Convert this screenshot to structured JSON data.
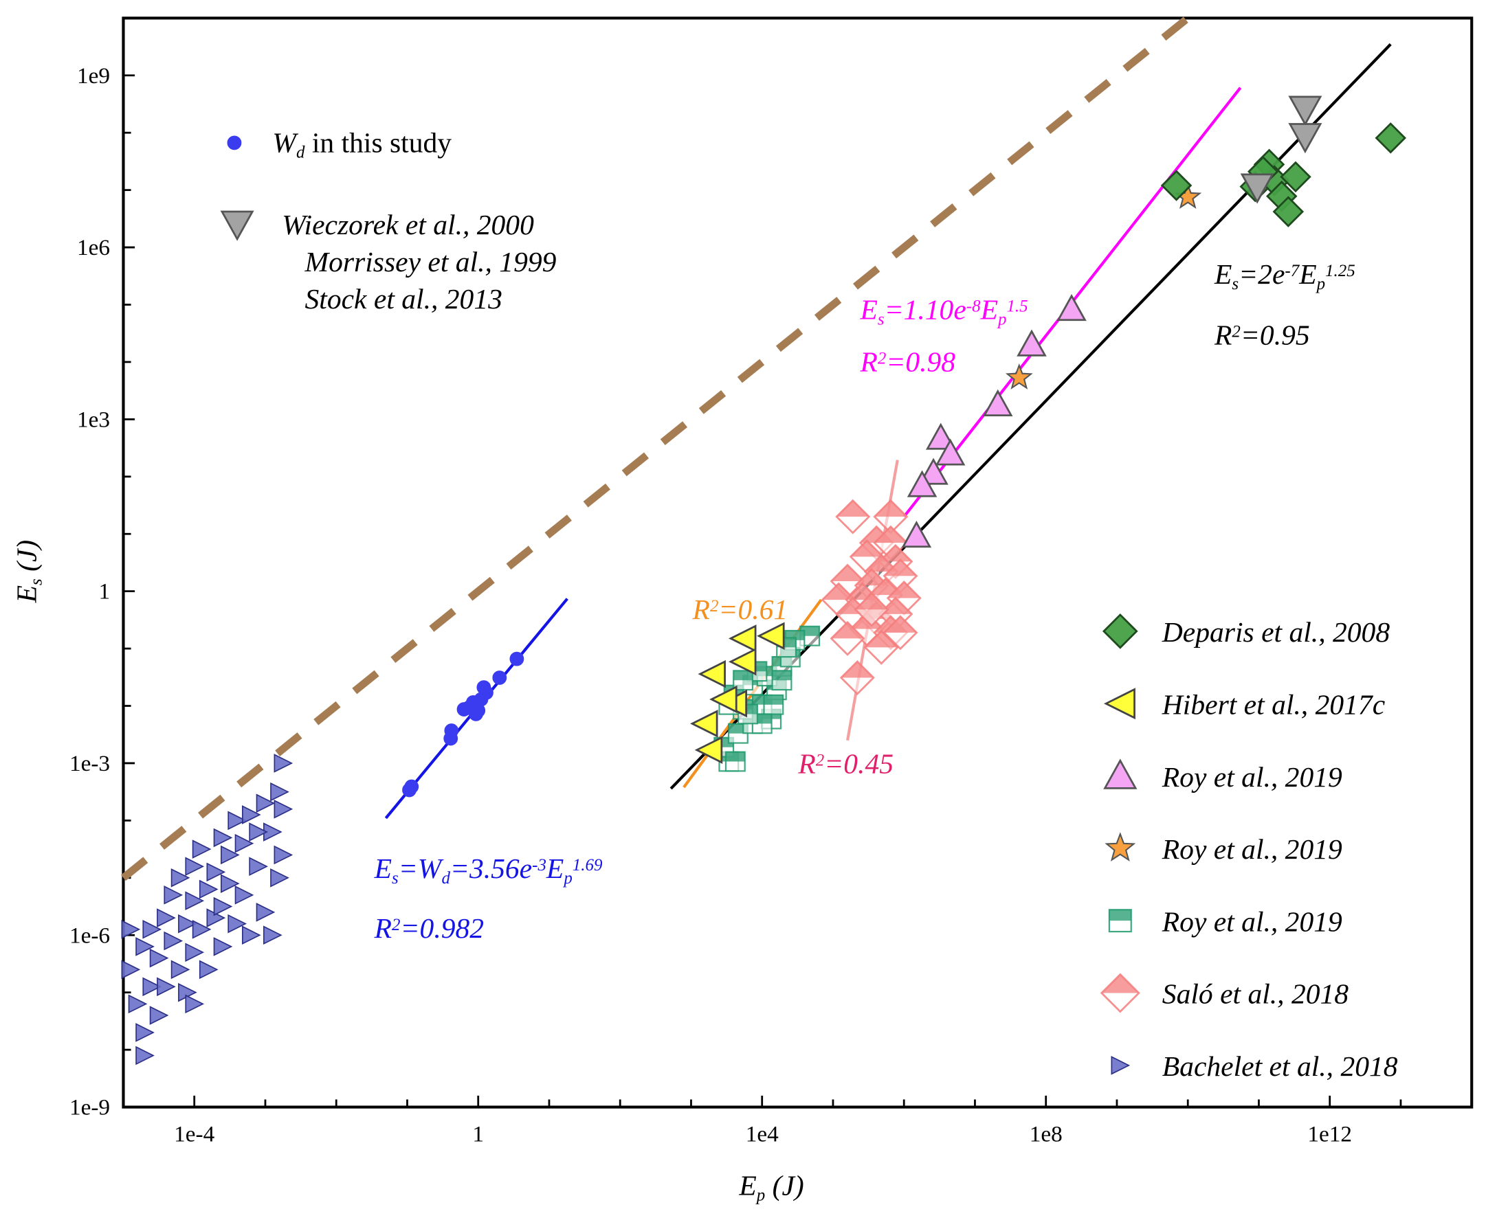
{
  "chart_data": {
    "type": "scatter",
    "xlabel": {
      "main": "E",
      "sub": "p",
      "unit": " (J)"
    },
    "ylabel": {
      "main": "E",
      "sub": "s",
      "unit": " (J)"
    },
    "xscale": "log",
    "yscale": "log",
    "xlim": [
      1e-05,
      100000000000000.0
    ],
    "ylim": [
      1e-09,
      10000000000.0
    ],
    "grid": false,
    "x_ticks": [
      {
        "v": 0.0001,
        "label": "1e-4"
      },
      {
        "v": 1,
        "label": "1"
      },
      {
        "v": 10000.0,
        "label": "1e4"
      },
      {
        "v": 100000000.0,
        "label": "1e8"
      },
      {
        "v": 1000000000000.0,
        "label": "1e12"
      }
    ],
    "y_ticks": [
      {
        "v": 1000000000.0,
        "label": "1e9"
      },
      {
        "v": 1000000.0,
        "label": "1e6"
      },
      {
        "v": 1000.0,
        "label": "1e3"
      },
      {
        "v": 1,
        "label": "1"
      },
      {
        "v": 0.001,
        "label": "1e-3"
      },
      {
        "v": 1e-06,
        "label": "1e-6"
      },
      {
        "v": 1e-09,
        "label": "1e-9"
      }
    ],
    "series": [
      {
        "name": "Bachelet et al., 2018",
        "marker": "triangle-right",
        "color": "#6b70c9",
        "edge": "#2b2f86",
        "points": [
          [
            1.26e-05,
            2.51e-07
          ],
          [
            1.58e-05,
            6.31e-08
          ],
          [
            2e-05,
            2e-08
          ],
          [
            2e-05,
            7.94e-09
          ],
          [
            2e-05,
            6.31e-07
          ],
          [
            2.51e-05,
            1.26e-07
          ],
          [
            2.51e-05,
            1.26e-06
          ],
          [
            3.16e-05,
            3.98e-07
          ],
          [
            3.16e-05,
            3.98e-08
          ],
          [
            3.98e-05,
            2e-06
          ],
          [
            3.98e-05,
            1.26e-07
          ],
          [
            5.01e-05,
            7.94e-07
          ],
          [
            5.01e-05,
            5.01e-06
          ],
          [
            6.31e-05,
            2.51e-07
          ],
          [
            6.31e-05,
            1e-05
          ],
          [
            7.94e-05,
            1.58e-06
          ],
          [
            7.94e-05,
            1e-07
          ],
          [
            0.0001,
            3.98e-06
          ],
          [
            0.0001,
            5.01e-07
          ],
          [
            0.0001,
            1.58e-05
          ],
          [
            0.000126,
            1.26e-06
          ],
          [
            0.000126,
            3.16e-05
          ],
          [
            0.000158,
            6.31e-06
          ],
          [
            0.000158,
            2.51e-07
          ],
          [
            0.0002,
            1.26e-05
          ],
          [
            0.0002,
            2e-06
          ],
          [
            0.000251,
            5.01e-05
          ],
          [
            0.000251,
            6.31e-07
          ],
          [
            0.000316,
            7.94e-06
          ],
          [
            0.000316,
            2.51e-05
          ],
          [
            0.000398,
            1.58e-06
          ],
          [
            0.000398,
            0.0001
          ],
          [
            0.000501,
            5.01e-06
          ],
          [
            0.000501,
            3.98e-05
          ],
          [
            0.000631,
            0.000126
          ],
          [
            0.000631,
            1e-06
          ],
          [
            0.000794,
            1.58e-05
          ],
          [
            0.001,
            0.0002
          ],
          [
            0.001,
            2.51e-06
          ],
          [
            0.00126,
            6.31e-05
          ],
          [
            0.00126,
            1e-06
          ],
          [
            0.00158,
            0.000316
          ],
          [
            0.00158,
            1e-05
          ],
          [
            0.00178,
            0.001
          ],
          [
            0.00178,
            2.51e-05
          ],
          [
            0.00178,
            0.000158
          ],
          [
            1.26e-05,
            1.26e-06
          ],
          [
            0.0001,
            6.31e-08
          ],
          [
            0.000251,
            3.16e-06
          ],
          [
            0.000794,
            6.31e-05
          ]
        ]
      },
      {
        "name": "W_d in this study",
        "marker": "circle",
        "color": "#3b3bf0",
        "edge": "#3b3bf0",
        "points": [
          [
            0.107,
            0.00034
          ],
          [
            0.115,
            0.00039
          ],
          [
            0.41,
            0.0027
          ],
          [
            0.42,
            0.0037
          ],
          [
            0.63,
            0.0087
          ],
          [
            0.74,
            0.0093
          ],
          [
            0.85,
            0.0115
          ],
          [
            0.93,
            0.0072
          ],
          [
            1.0,
            0.0083
          ],
          [
            1.1,
            0.013
          ],
          [
            1.3,
            0.017
          ],
          [
            1.2,
            0.021
          ],
          [
            2.0,
            0.031
          ],
          [
            3.5,
            0.066
          ]
        ]
      },
      {
        "name": "Roy et al., 2019 (squares)",
        "marker": "square-half",
        "color": "#1f9a6c",
        "edge": "#1f9a6c",
        "points": [
          [
            3400.0,
            0.00107
          ],
          [
            2900.0,
            0.0019
          ],
          [
            4600.0,
            0.0033
          ],
          [
            7400.0,
            0.0049
          ],
          [
            13500.0,
            0.0059
          ],
          [
            10000.0,
            0.0105
          ],
          [
            5400.0,
            0.0087
          ],
          [
            4000.0,
            0.0155
          ],
          [
            7400.0,
            0.023
          ],
          [
            16000.0,
            0.019
          ],
          [
            11700.0,
            0.033
          ],
          [
            19000.0,
            0.049
          ],
          [
            25000.0,
            0.071
          ],
          [
            47000.0,
            0.166
          ],
          [
            29000.0,
            0.14
          ],
          [
            22000.0,
            0.105
          ],
          [
            8500.0,
            0.04
          ],
          [
            5400.0,
            0.028
          ],
          [
            3400.0,
            0.0105
          ],
          [
            14500.0,
            0.0105
          ],
          [
            10000.0,
            0.0049
          ],
          [
            6300.0,
            0.0072
          ],
          [
            4200.0,
            0.00107
          ],
          [
            19000.0,
            0.028
          ]
        ]
      },
      {
        "name": "Hibert et al., 2017c",
        "marker": "triangle-left",
        "color": "#ffff3a",
        "edge": "#444444",
        "points": [
          [
            5400.0,
            0.15
          ],
          [
            13500.0,
            0.166
          ],
          [
            2000.0,
            0.036
          ],
          [
            5400.0,
            0.059
          ],
          [
            1550.0,
            0.0049
          ],
          [
            4000.0,
            0.011
          ],
          [
            1800.0,
            0.0017
          ],
          [
            2900.0,
            0.013
          ]
        ]
      },
      {
        "name": "Saló et al., 2018",
        "marker": "diamond-half",
        "color": "#f47c7c",
        "edge": "#f47c7c",
        "points": [
          [
            190000.0,
            20
          ],
          [
            650000.0,
            20
          ],
          [
            410000.0,
            7
          ],
          [
            650000.0,
            7
          ],
          [
            300000.0,
            4
          ],
          [
            760000.0,
            3.3
          ],
          [
            480000.0,
            2.2
          ],
          [
            160000.0,
            1.5
          ],
          [
            350000.0,
            1.26
          ],
          [
            890000.0,
            1.85
          ],
          [
            120000.0,
            0.71
          ],
          [
            260000.0,
            0.71
          ],
          [
            550000.0,
            0.86
          ],
          [
            1000000.0,
            0.76
          ],
          [
            190000.0,
            0.4
          ],
          [
            410000.0,
            0.33
          ],
          [
            760000.0,
            0.4
          ],
          [
            300000.0,
            0.22
          ],
          [
            650000.0,
            0.19
          ],
          [
            160000.0,
            0.15
          ],
          [
            480000.0,
            0.105
          ],
          [
            220000.0,
            0.031
          ],
          [
            890000.0,
            0.19
          ],
          [
            350000.0,
            0.48
          ]
        ]
      },
      {
        "name": "Roy et al., 2019 (triangles)",
        "marker": "triangle-up",
        "color": "#f4a6f4",
        "edge": "#555555",
        "points": [
          [
            230000000.0,
            83000.0
          ],
          [
            63000000.0,
            20000.0
          ],
          [
            21000000.0,
            1800.0
          ],
          [
            3300000.0,
            470
          ],
          [
            4500000.0,
            250
          ],
          [
            2600000.0,
            115
          ],
          [
            1800000.0,
            70
          ],
          [
            1500000.0,
            9.2
          ]
        ]
      },
      {
        "name": "Roy et al., 2019 (stars)",
        "marker": "star",
        "color": "#f8a040",
        "edge": "#555555",
        "points": [
          [
            10000000000.0,
            7500000.0
          ],
          [
            42000000.0,
            5300.0
          ]
        ]
      },
      {
        "name": "Deparis et al., 2008",
        "marker": "diamond",
        "color": "#44a044",
        "edge": "#1e4a1e",
        "points": [
          [
            7200000000000.0,
            81000000.0
          ],
          [
            6900000000.0,
            12000000.0
          ],
          [
            89000000000.0,
            11500000.0
          ],
          [
            140000000000.0,
            28000000.0
          ],
          [
            166000000000.0,
            14500000.0
          ],
          [
            210000000000.0,
            7800000.0
          ],
          [
            260000000000.0,
            4200000.0
          ],
          [
            330000000000.0,
            17000000.0
          ],
          [
            115000000000.0,
            21000000.0
          ]
        ]
      },
      {
        "name": "Wieczorek et al., 2000",
        "marker": "triangle-down",
        "color": "#a3a3a3",
        "edge": "#555555",
        "points": [
          [
            450000000000.0,
            260000000.0
          ],
          [
            450000000000.0,
            87000000.0
          ],
          [
            95000000000.0,
            11500000.0
          ]
        ]
      }
    ],
    "lines": [
      {
        "id": "equality",
        "color": "#a67c52",
        "dashed": true,
        "points": [
          [
            1e-05,
            1e-05
          ],
          [
            10000000000.0,
            10000000000.0
          ]
        ]
      },
      {
        "id": "this-study-fit",
        "color": "#1414e6",
        "points": [
          [
            0.05,
            0.00011
          ],
          [
            18,
            0.74
          ]
        ]
      },
      {
        "id": "overall-fit",
        "color": "#000000",
        "points": [
          [
            520.0,
            0.00036
          ],
          [
            7200000000000.0,
            3500000000.0
          ]
        ]
      },
      {
        "id": "roy-triangle-fit",
        "color": "#ff00ff",
        "points": [
          [
            1000000.0,
            20
          ],
          [
            55000000000.0,
            610000000.0
          ]
        ]
      },
      {
        "id": "hibert-fit",
        "color": "#f39020",
        "points": [
          [
            790.0,
            0.00038
          ],
          [
            68000.0,
            0.71
          ]
        ]
      },
      {
        "id": "salo-fit",
        "color": "#f4a0a0",
        "points": [
          [
            810000.0,
            195
          ],
          [
            160000.0,
            0.0025
          ]
        ]
      }
    ],
    "annotations": {
      "blue_eq": [
        {
          "t": "E"
        },
        {
          "t": "s",
          "s": "sub"
        },
        {
          "t": "=W"
        },
        {
          "t": "d",
          "s": "sub"
        },
        {
          "t": "=3.56e"
        },
        {
          "t": "-3",
          "s": "sup"
        },
        {
          "t": "E"
        },
        {
          "t": "p",
          "s": "sub"
        },
        {
          "t": "1.69",
          "s": "sup"
        }
      ],
      "blue_r2": [
        {
          "t": "R"
        },
        {
          "t": "2",
          "s": "sup"
        },
        {
          "t": "=0.982"
        }
      ],
      "magenta_eq": [
        {
          "t": "E"
        },
        {
          "t": "s",
          "s": "sub"
        },
        {
          "t": "=1.10e"
        },
        {
          "t": "-8",
          "s": "sup"
        },
        {
          "t": "E"
        },
        {
          "t": "p",
          "s": "sub"
        },
        {
          "t": "1.5",
          "s": "sup"
        }
      ],
      "magenta_r2": [
        {
          "t": "R"
        },
        {
          "t": "2",
          "s": "sup"
        },
        {
          "t": "=0.98"
        }
      ],
      "black_eq": [
        {
          "t": "E"
        },
        {
          "t": "s",
          "s": "sub"
        },
        {
          "t": "=2e"
        },
        {
          "t": "-7",
          "s": "sup"
        },
        {
          "t": "E"
        },
        {
          "t": "p",
          "s": "sub"
        },
        {
          "t": "1.25",
          "s": "sup"
        }
      ],
      "black_r2": [
        {
          "t": "R"
        },
        {
          "t": "2",
          "s": "sup"
        },
        {
          "t": "=0.95"
        }
      ],
      "orange_r2": [
        {
          "t": "R"
        },
        {
          "t": "2",
          "s": "sup"
        },
        {
          "t": "=0.61"
        }
      ],
      "crimson_r2": [
        {
          "t": "R"
        },
        {
          "t": "2",
          "s": "sup"
        },
        {
          "t": "=0.45"
        }
      ]
    },
    "annotation_colors": {
      "blue": "#1414e6",
      "magenta": "#ff00ff",
      "black": "#000000",
      "orange": "#f39020",
      "crimson": "#e0206a"
    },
    "legend_top_left": {
      "this_study": [
        {
          "t": "W"
        },
        {
          "t": "d",
          "s": "sub"
        },
        {
          "t": " in this study",
          "upright": true
        }
      ],
      "wieczorek": [
        "Wieczorek et al., 2000",
        "Morrissey et al., 1999",
        "Stock et al., 2013"
      ]
    },
    "legend_right": [
      {
        "label": "Deparis et al., 2008",
        "marker": "diamond",
        "color": "#44a044",
        "edge": "#1e4a1e"
      },
      {
        "label": "Hibert et al., 2017c",
        "marker": "triangle-left",
        "color": "#ffff3a",
        "edge": "#444444"
      },
      {
        "label": "Roy et al., 2019",
        "marker": "triangle-up",
        "color": "#f4a6f4",
        "edge": "#555555"
      },
      {
        "label": "Roy et al., 2019",
        "marker": "star",
        "color": "#f8a040",
        "edge": "#555555"
      },
      {
        "label": "Roy et al., 2019",
        "marker": "square-half",
        "color": "#1f9a6c",
        "edge": "#1f9a6c"
      },
      {
        "label": "Saló et al., 2018",
        "marker": "diamond-half",
        "color": "#f47c7c",
        "edge": "#f47c7c"
      },
      {
        "label": "Bachelet et al., 2018",
        "marker": "triangle-right",
        "color": "#6b70c9",
        "edge": "#2b2f86"
      }
    ]
  }
}
